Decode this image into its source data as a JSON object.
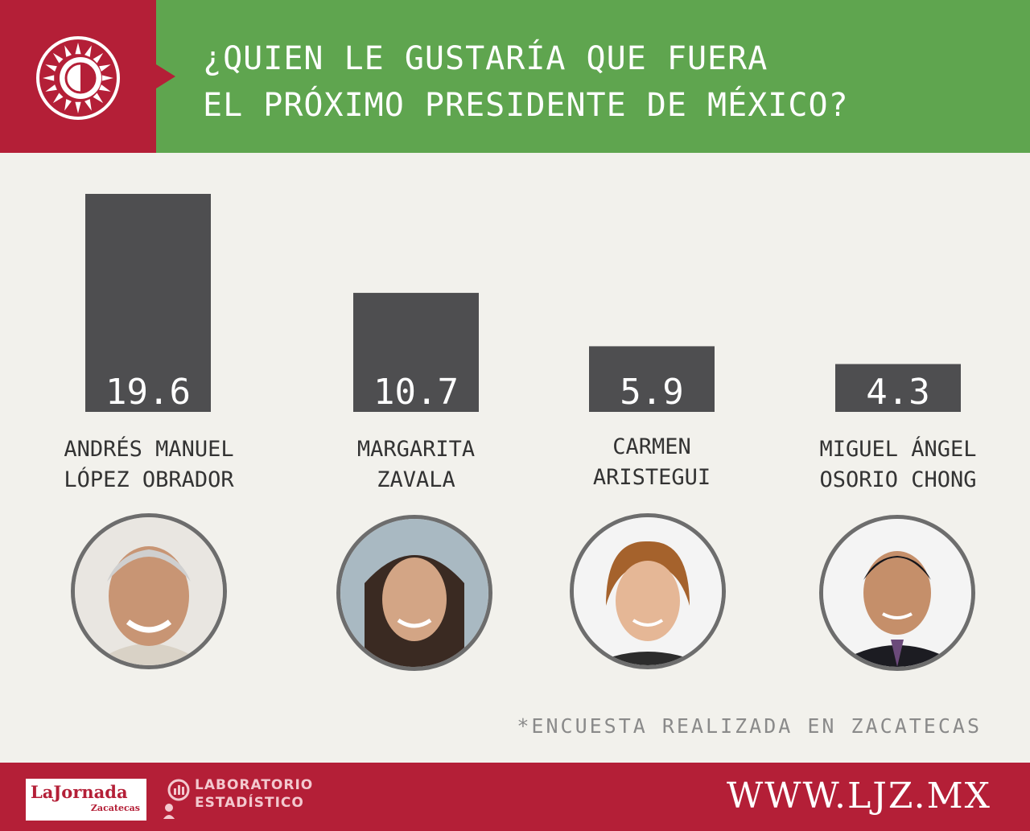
{
  "header": {
    "title_line_1": "¿QUIEN LE GUSTARÍA QUE FUERA",
    "title_line_2": "EL PRÓXIMO PRESIDENTE DE MÉXICO?",
    "logo_icon": "sun-icon"
  },
  "chart_data": {
    "type": "bar",
    "categories": [
      "ANDRÉS MANUEL LÓPEZ OBRADOR",
      "MARGARITA ZAVALA",
      "CARMEN ARISTEGUI",
      "MIGUEL ÁNGEL OSORIO CHONG"
    ],
    "values": [
      19.6,
      10.7,
      5.9,
      4.3
    ],
    "data_labels": [
      "19.6",
      "10.7",
      "5.9",
      "4.3"
    ],
    "bar_color": "#4e4e50",
    "title": "",
    "xlabel": "",
    "ylabel": "",
    "grid": false
  },
  "candidates": [
    {
      "line1": "ANDRÉS MANUEL",
      "line2": "LÓPEZ OBRADOR"
    },
    {
      "line1": "MARGARITA",
      "line2": "ZAVALA"
    },
    {
      "line1": "CARMEN",
      "line2": "ARISTEGUI"
    },
    {
      "line1": "MIGUEL ÁNGEL",
      "line2": "OSORIO CHONG"
    }
  ],
  "footnote": "*ENCUESTA REALIZADA EN ZACATECAS",
  "footer": {
    "logo_main": "LaJornada",
    "logo_sub": "Zacatecas",
    "lab_line_1": "LABORATORIO",
    "lab_line_2": "ESTADÍSTICO",
    "website": "WWW.LJZ.MX"
  },
  "colors": {
    "red": "#b41f37",
    "green": "#5fa54f",
    "background": "#f2f1ec"
  }
}
